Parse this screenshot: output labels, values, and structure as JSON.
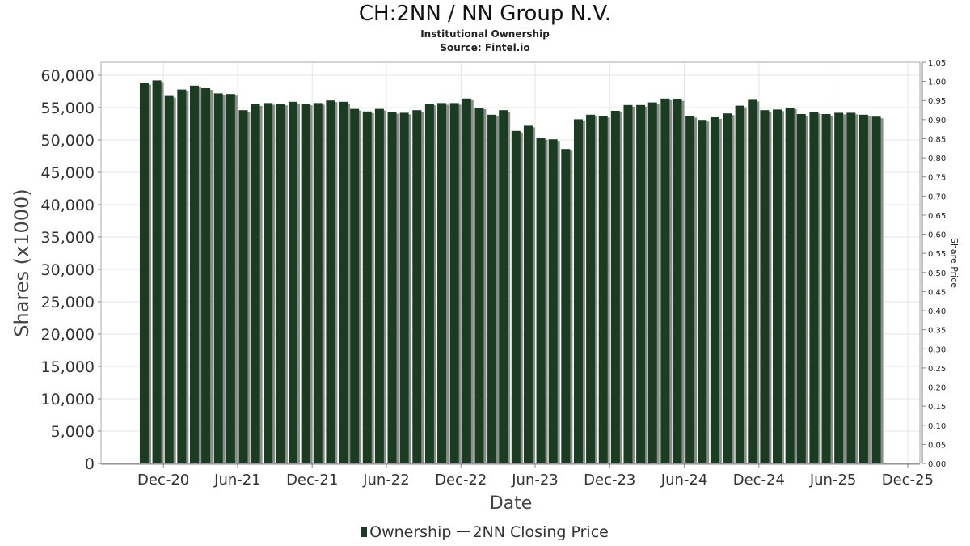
{
  "title": "CH:2NN / NN Group N.V.",
  "subtitle1": "Institutional Ownership",
  "subtitle2": "Source: Fintel.io",
  "legend": {
    "ownership_label": "Ownership",
    "price_label": "2NN Closing Price"
  },
  "colors": {
    "bar": "#1a3d22",
    "bar_shadow": "#8c8c8c",
    "grid": "#e6e6e6",
    "axis": "#888888"
  },
  "chart_data": {
    "type": "bar",
    "xlabel": "Date",
    "ylabel": "Shares (x1000)",
    "y2label": "Share Price",
    "ylim": [
      0,
      62000
    ],
    "y2lim": [
      0,
      1.05
    ],
    "grid": true,
    "legend_position": "bottom",
    "x_range": [
      "2020-07-01",
      "2025-12-31"
    ],
    "x_ticks": [
      {
        "label": "Dec-20",
        "date": "2020-12-01"
      },
      {
        "label": "Jun-21",
        "date": "2021-06-01"
      },
      {
        "label": "Dec-21",
        "date": "2021-12-01"
      },
      {
        "label": "Jun-22",
        "date": "2022-06-01"
      },
      {
        "label": "Dec-22",
        "date": "2022-12-01"
      },
      {
        "label": "Jun-23",
        "date": "2023-06-01"
      },
      {
        "label": "Dec-23",
        "date": "2023-12-01"
      },
      {
        "label": "Jun-24",
        "date": "2024-06-01"
      },
      {
        "label": "Dec-24",
        "date": "2024-12-01"
      },
      {
        "label": "Jun-25",
        "date": "2025-06-01"
      },
      {
        "label": "Dec-25",
        "date": "2025-12-01"
      }
    ],
    "y_ticks": [
      0,
      5000,
      10000,
      15000,
      20000,
      25000,
      30000,
      35000,
      40000,
      45000,
      50000,
      55000,
      60000
    ],
    "y_tick_labels": [
      "0",
      "5,000",
      "10,000",
      "15,000",
      "20,000",
      "25,000",
      "30,000",
      "35,000",
      "40,000",
      "45,000",
      "50,000",
      "55,000",
      "60,000"
    ],
    "y2_ticks": [
      "0.00",
      "0.05",
      "0.10",
      "0.15",
      "0.20",
      "0.25",
      "0.30",
      "0.35",
      "0.40",
      "0.45",
      "0.50",
      "0.55",
      "0.60",
      "0.65",
      "0.70",
      "0.75",
      "0.80",
      "0.85",
      "0.90",
      "0.95",
      "1.00",
      "1.05"
    ],
    "series": [
      {
        "name": "Ownership",
        "points": [
          {
            "date": "2020-10-15",
            "value": 58800
          },
          {
            "date": "2020-11-15",
            "value": 59200
          },
          {
            "date": "2020-12-15",
            "value": 56800
          },
          {
            "date": "2021-01-15",
            "value": 57800
          },
          {
            "date": "2021-02-15",
            "value": 58400
          },
          {
            "date": "2021-03-15",
            "value": 58000
          },
          {
            "date": "2021-04-15",
            "value": 57200
          },
          {
            "date": "2021-05-15",
            "value": 57100
          },
          {
            "date": "2021-06-15",
            "value": 54600
          },
          {
            "date": "2021-07-15",
            "value": 55500
          },
          {
            "date": "2021-08-15",
            "value": 55700
          },
          {
            "date": "2021-09-15",
            "value": 55600
          },
          {
            "date": "2021-10-15",
            "value": 55900
          },
          {
            "date": "2021-11-15",
            "value": 55600
          },
          {
            "date": "2021-12-15",
            "value": 55700
          },
          {
            "date": "2022-01-15",
            "value": 56100
          },
          {
            "date": "2022-02-15",
            "value": 55900
          },
          {
            "date": "2022-03-15",
            "value": 54800
          },
          {
            "date": "2022-04-15",
            "value": 54400
          },
          {
            "date": "2022-05-15",
            "value": 54800
          },
          {
            "date": "2022-06-15",
            "value": 54300
          },
          {
            "date": "2022-07-15",
            "value": 54200
          },
          {
            "date": "2022-08-15",
            "value": 54600
          },
          {
            "date": "2022-09-15",
            "value": 55600
          },
          {
            "date": "2022-10-15",
            "value": 55700
          },
          {
            "date": "2022-11-15",
            "value": 55700
          },
          {
            "date": "2022-12-15",
            "value": 56400
          },
          {
            "date": "2023-01-15",
            "value": 55000
          },
          {
            "date": "2023-02-15",
            "value": 53900
          },
          {
            "date": "2023-03-15",
            "value": 54600
          },
          {
            "date": "2023-04-15",
            "value": 51400
          },
          {
            "date": "2023-05-15",
            "value": 52200
          },
          {
            "date": "2023-06-15",
            "value": 50300
          },
          {
            "date": "2023-07-15",
            "value": 50100
          },
          {
            "date": "2023-08-15",
            "value": 48600
          },
          {
            "date": "2023-09-15",
            "value": 53200
          },
          {
            "date": "2023-10-15",
            "value": 53900
          },
          {
            "date": "2023-11-15",
            "value": 53700
          },
          {
            "date": "2023-12-15",
            "value": 54500
          },
          {
            "date": "2024-01-15",
            "value": 55400
          },
          {
            "date": "2024-02-15",
            "value": 55400
          },
          {
            "date": "2024-03-15",
            "value": 55800
          },
          {
            "date": "2024-04-15",
            "value": 56400
          },
          {
            "date": "2024-05-15",
            "value": 56300
          },
          {
            "date": "2024-06-15",
            "value": 53700
          },
          {
            "date": "2024-07-15",
            "value": 53100
          },
          {
            "date": "2024-08-15",
            "value": 53500
          },
          {
            "date": "2024-09-15",
            "value": 54100
          },
          {
            "date": "2024-10-15",
            "value": 55300
          },
          {
            "date": "2024-11-15",
            "value": 56200
          },
          {
            "date": "2024-12-15",
            "value": 54600
          },
          {
            "date": "2025-01-15",
            "value": 54700
          },
          {
            "date": "2025-02-15",
            "value": 55000
          },
          {
            "date": "2025-03-15",
            "value": 54000
          },
          {
            "date": "2025-04-15",
            "value": 54300
          },
          {
            "date": "2025-05-15",
            "value": 54000
          },
          {
            "date": "2025-06-15",
            "value": 54200
          },
          {
            "date": "2025-07-15",
            "value": 54200
          },
          {
            "date": "2025-08-15",
            "value": 53900
          },
          {
            "date": "2025-09-15",
            "value": 53600
          }
        ]
      }
    ]
  }
}
